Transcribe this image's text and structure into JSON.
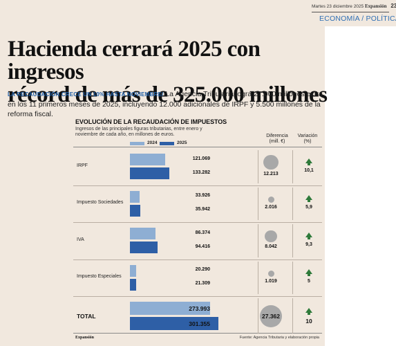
{
  "folio": {
    "date": "Martes 23 diciembre 2025",
    "publication": "Expansión",
    "page_number": "23",
    "section": "ECONOMÍA / POLÍTICA"
  },
  "article": {
    "headline_line1": "Hacienda cerrará 2025 con ingresos",
    "headline_line2": "récord de más de 325.000 millones",
    "kicker": "La recaudación crece un 10% hasta noviembre/",
    "lead": " La Agencia Tributaria logra 27.000 millones extra en los 11 primeros meses de 2025, incluyendo 12.000 adicionales de IRPF y 5.500 millones de la reforma fiscal."
  },
  "colors": {
    "series_2024": "#8eaed3",
    "series_2025": "#2e5fa6",
    "bubble": "#a8a8a8",
    "arrow_up": "#2f7a3a",
    "background": "#f1e8de",
    "section": "#2f6fb4"
  },
  "chart_data": {
    "type": "bar",
    "orientation": "horizontal",
    "title": "EVOLUCIÓN DE LA RECAUDACIÓN DE IMPUESTOS",
    "subtitle": "Ingresos de las principales figuras tributarias, entre enero y noviembre de cada año, en millones de euros.",
    "categories": [
      "IRPF",
      "Impuesto Sociedades",
      "IVA",
      "Impuesto Especiales",
      "TOTAL"
    ],
    "series": [
      {
        "name": "2024",
        "values": [
          121069,
          33926,
          86374,
          20290,
          273993
        ],
        "labels": [
          "121.069",
          "33.926",
          "86.374",
          "20.290",
          "273.993"
        ]
      },
      {
        "name": "2025",
        "values": [
          133282,
          35942,
          94416,
          21309,
          301355
        ],
        "labels": [
          "133.282",
          "35.942",
          "94.416",
          "21.309",
          "301.355"
        ]
      }
    ],
    "difference_header": "Diferencia (mill. €)",
    "difference_values": [
      12213,
      2016,
      8042,
      1019,
      27362
    ],
    "difference_labels": [
      "12.213",
      "2.016",
      "8.042",
      "1.019",
      "27.362"
    ],
    "variation_header": "Variación (%)",
    "variation_values": [
      10.1,
      5.9,
      9.3,
      5,
      10
    ],
    "variation_labels": [
      "10,1",
      "5,9",
      "9,3",
      "5",
      "10"
    ],
    "variation_direction": "up",
    "legend_position": "top-left",
    "source": "Fuente: Agencia Tributaria y elaboración propia",
    "brand": "Expansión"
  }
}
